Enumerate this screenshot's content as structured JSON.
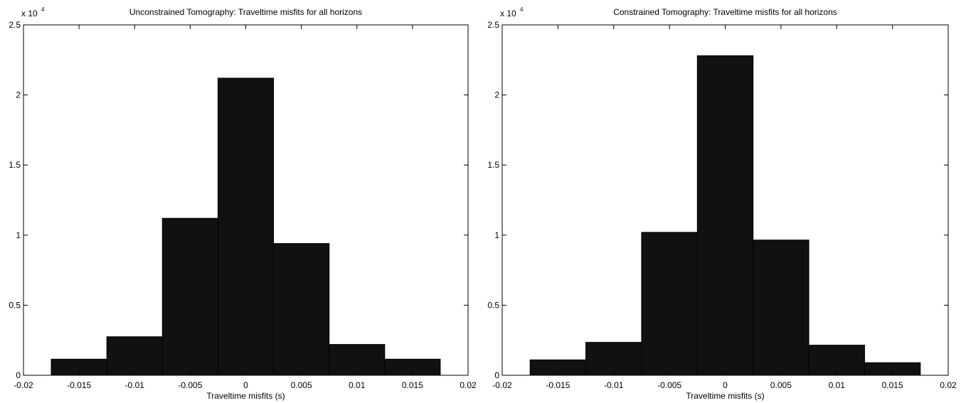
{
  "chart_data": [
    {
      "type": "histogram",
      "title": "Unconstrained Tomography: Traveltime misfits for all horizons",
      "xlabel": "Traveltime misfits (s)",
      "y_multiplier": {
        "base": "x 10",
        "power": "4"
      },
      "bins": [
        -0.0175,
        -0.0125,
        -0.0075,
        -0.0025,
        0.0025,
        0.0075,
        0.0125,
        0.0175
      ],
      "values": [
        0.115,
        0.275,
        1.12,
        2.12,
        0.94,
        0.22,
        0.115
      ],
      "color": "#111111",
      "xlim": [
        -0.02,
        0.02
      ],
      "xticks": [
        -0.02,
        -0.015,
        -0.01,
        -0.005,
        0,
        0.005,
        0.01,
        0.015,
        0.02
      ],
      "ylim": [
        0,
        2.5
      ],
      "yticks": [
        0,
        0.5,
        1,
        1.5,
        2,
        2.5
      ]
    },
    {
      "type": "histogram",
      "title": "Constrained Tomography: Traveltime misfits for all horizons",
      "xlabel": "Traveltime misfits (s)",
      "y_multiplier": {
        "base": "x 10",
        "power": "4"
      },
      "bins": [
        -0.0175,
        -0.0125,
        -0.0075,
        -0.0025,
        0.0025,
        0.0075,
        0.0125,
        0.0175
      ],
      "values": [
        0.11,
        0.235,
        1.02,
        2.28,
        0.965,
        0.215,
        0.09
      ],
      "color": "#111111",
      "xlim": [
        -0.02,
        0.02
      ],
      "xticks": [
        -0.02,
        -0.015,
        -0.01,
        -0.005,
        0,
        0.005,
        0.01,
        0.015,
        0.02
      ],
      "ylim": [
        0,
        2.5
      ],
      "yticks": [
        0,
        0.5,
        1,
        1.5,
        2,
        2.5
      ]
    }
  ]
}
